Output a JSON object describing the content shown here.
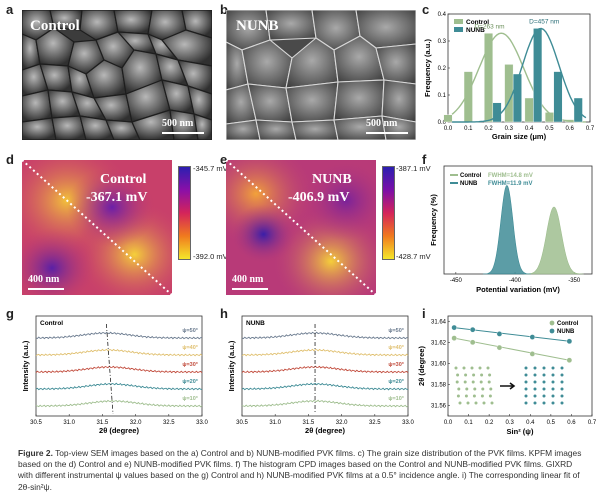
{
  "panels": {
    "a": {
      "label": "a",
      "title": "Control",
      "scale": "500 nm"
    },
    "b": {
      "label": "b",
      "title": "NUNB",
      "scale": "500 nm"
    },
    "d": {
      "label": "d",
      "title": "Control",
      "value": "-367.1 mV",
      "scale": "400 nm",
      "cmax": "-345.7 mV",
      "cmin": "-392.0 mV"
    },
    "e": {
      "label": "e",
      "title": "NUNB",
      "value": "-406.9 mV",
      "scale": "400 nm",
      "cmax": "-387.1 mV",
      "cmin": "-428.7 mV"
    }
  },
  "chart_data": [
    {
      "panel": "c",
      "type": "bar",
      "xlabel": "Grain size (μm)",
      "ylabel": "Frequency (a.u.)",
      "xlim": [
        0,
        0.7
      ],
      "ylim": [
        0,
        0.45
      ],
      "xticks": [
        "0.0",
        "0.1",
        "0.2",
        "0.3",
        "0.4",
        "0.5",
        "0.6",
        "0.7"
      ],
      "yticks": [
        "0.0",
        "0.1",
        "0.2",
        "0.3",
        "0.4"
      ],
      "series": [
        {
          "name": "Control",
          "color": "#9fbe8f",
          "x": [
            0.0,
            0.1,
            0.2,
            0.3,
            0.4,
            0.5,
            0.6
          ],
          "values": [
            0.03,
            0.21,
            0.37,
            0.24,
            0.1,
            0.04,
            0.01
          ]
        },
        {
          "name": "NUNB",
          "color": "#3f8c96",
          "x": [
            0.2,
            0.3,
            0.4,
            0.5,
            0.6
          ],
          "values": [
            0.08,
            0.2,
            0.39,
            0.21,
            0.1
          ]
        }
      ],
      "annotations": [
        "D=263 nm",
        "D=457 nm"
      ]
    },
    {
      "panel": "f",
      "type": "area",
      "xlabel": "Potential variation (mV)",
      "ylabel": "Frequency (%)",
      "xlim": [
        -460,
        -335
      ],
      "xticks": [
        "-450",
        "-400",
        "-350"
      ],
      "series": [
        {
          "name": "Control",
          "color": "#9fbe8f",
          "center": -367.1,
          "fwhm": 14.8,
          "label": "FWHM=14.8 mV"
        },
        {
          "name": "NUNB",
          "color": "#3f8c96",
          "center": -406.9,
          "fwhm": 11.9,
          "label": "FWHM=11.9 mV"
        }
      ]
    },
    {
      "panel": "g",
      "type": "line",
      "title": "Control",
      "xlabel": "2θ (degree)",
      "ylabel": "Intensity (a.u.)",
      "xlim": [
        30.5,
        33.0
      ],
      "xticks": [
        "30.5",
        "31.0",
        "31.5",
        "32.0",
        "32.5",
        "33.0"
      ],
      "series": [
        {
          "name": "ψ=50°",
          "color": "#6b7b8f"
        },
        {
          "name": "ψ=40°",
          "color": "#e0c070"
        },
        {
          "name": "ψ=30°",
          "color": "#c24d3e"
        },
        {
          "name": "ψ=20°",
          "color": "#3f8c96"
        },
        {
          "name": "ψ=10°",
          "color": "#9fbe8f"
        }
      ],
      "peak_shift": [
        31.56,
        31.66
      ]
    },
    {
      "panel": "h",
      "type": "line",
      "title": "NUNB",
      "xlabel": "2θ (degree)",
      "ylabel": "Intensity (a.u.)",
      "xlim": [
        30.5,
        33.0
      ],
      "xticks": [
        "30.5",
        "31.0",
        "31.5",
        "32.0",
        "32.5",
        "33.0"
      ],
      "series": [
        {
          "name": "ψ=50°",
          "color": "#6b7b8f"
        },
        {
          "name": "ψ=40°",
          "color": "#e0c070"
        },
        {
          "name": "ψ=30°",
          "color": "#c24d3e"
        },
        {
          "name": "ψ=20°",
          "color": "#3f8c96"
        },
        {
          "name": "ψ=10°",
          "color": "#9fbe8f"
        }
      ],
      "peak_shift": [
        31.6,
        31.6
      ]
    },
    {
      "panel": "i",
      "type": "scatter",
      "xlabel": "Sin² (ψ)",
      "ylabel": "2θ (degree)",
      "xlim": [
        0,
        0.7
      ],
      "ylim": [
        31.55,
        31.645
      ],
      "xticks": [
        "0.0",
        "0.1",
        "0.2",
        "0.3",
        "0.4",
        "0.5",
        "0.6",
        "0.7"
      ],
      "yticks": [
        "31.56",
        "31.58",
        "31.60",
        "31.62",
        "31.64"
      ],
      "series": [
        {
          "name": "Control",
          "color": "#9fbe8f",
          "x": [
            0.03,
            0.12,
            0.25,
            0.41,
            0.59
          ],
          "y": [
            31.624,
            31.62,
            31.615,
            31.609,
            31.603
          ]
        },
        {
          "name": "NUNB",
          "color": "#3f8c96",
          "x": [
            0.03,
            0.12,
            0.25,
            0.41,
            0.59
          ],
          "y": [
            31.634,
            31.632,
            31.628,
            31.625,
            31.621
          ]
        }
      ]
    }
  ],
  "caption": {
    "label": "Figure 2.",
    "text": "Top-view SEM images based on the a) Control and b) NUNB-modified PVK films. c) The grain size distribution of the PVK films. KPFM images based on the d) Control and e) NUNB-modified PVK films. f) The histogram CPD images based on the Control and NUNB-modified PVK films. GIXRD with different instrumental ψ values based on the g) Control and h) NUNB-modified PVK films at a 0.5° incidence angle. i) The corresponding linear fit of 2θ-sin²ψ."
  },
  "colors": {
    "control": "#9fbe8f",
    "nunb": "#3f8c96"
  }
}
